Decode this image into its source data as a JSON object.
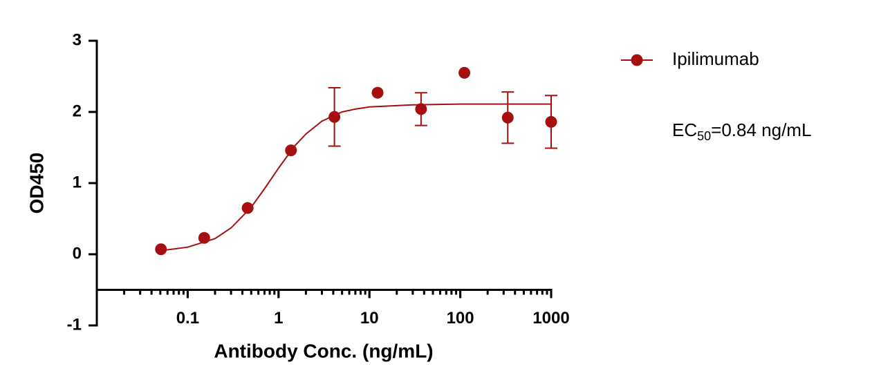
{
  "chart_data": {
    "type": "scatter",
    "x_label": "Antibody Conc. (ng/mL)",
    "y_label": "OD450",
    "x_scale": "log",
    "xlim": [
      0.01,
      1000
    ],
    "xticks": [
      0.1,
      1,
      10,
      100,
      1000
    ],
    "ylim": [
      -1,
      3
    ],
    "yticks": [
      3,
      2,
      1,
      0,
      -1
    ],
    "x_axis_at": -0.5,
    "series": [
      {
        "name": "Ipilimumab",
        "color": "#a50f0f",
        "x": [
          0.0508,
          0.152,
          0.457,
          1.37,
          4.12,
          12.3,
          37,
          111,
          333,
          1000
        ],
        "values": [
          0.07,
          0.23,
          0.65,
          1.46,
          1.93,
          2.27,
          2.04,
          2.55,
          1.92,
          1.86
        ],
        "errors": [
          null,
          null,
          null,
          null,
          0.41,
          null,
          0.23,
          null,
          0.36,
          0.37
        ],
        "fit": {
          "x": [
            0.05,
            0.1,
            0.2,
            0.3,
            0.5,
            0.7,
            1,
            1.5,
            2,
            3,
            5,
            7,
            10,
            30,
            100,
            1000
          ],
          "y": [
            0.05,
            0.1,
            0.22,
            0.37,
            0.66,
            0.92,
            1.21,
            1.52,
            1.69,
            1.87,
            2.0,
            2.04,
            2.07,
            2.1,
            2.11,
            2.11
          ]
        }
      }
    ],
    "annotation": {
      "text": "EC",
      "subscript": "50",
      "suffix": "=0.84 ng/mL"
    }
  }
}
